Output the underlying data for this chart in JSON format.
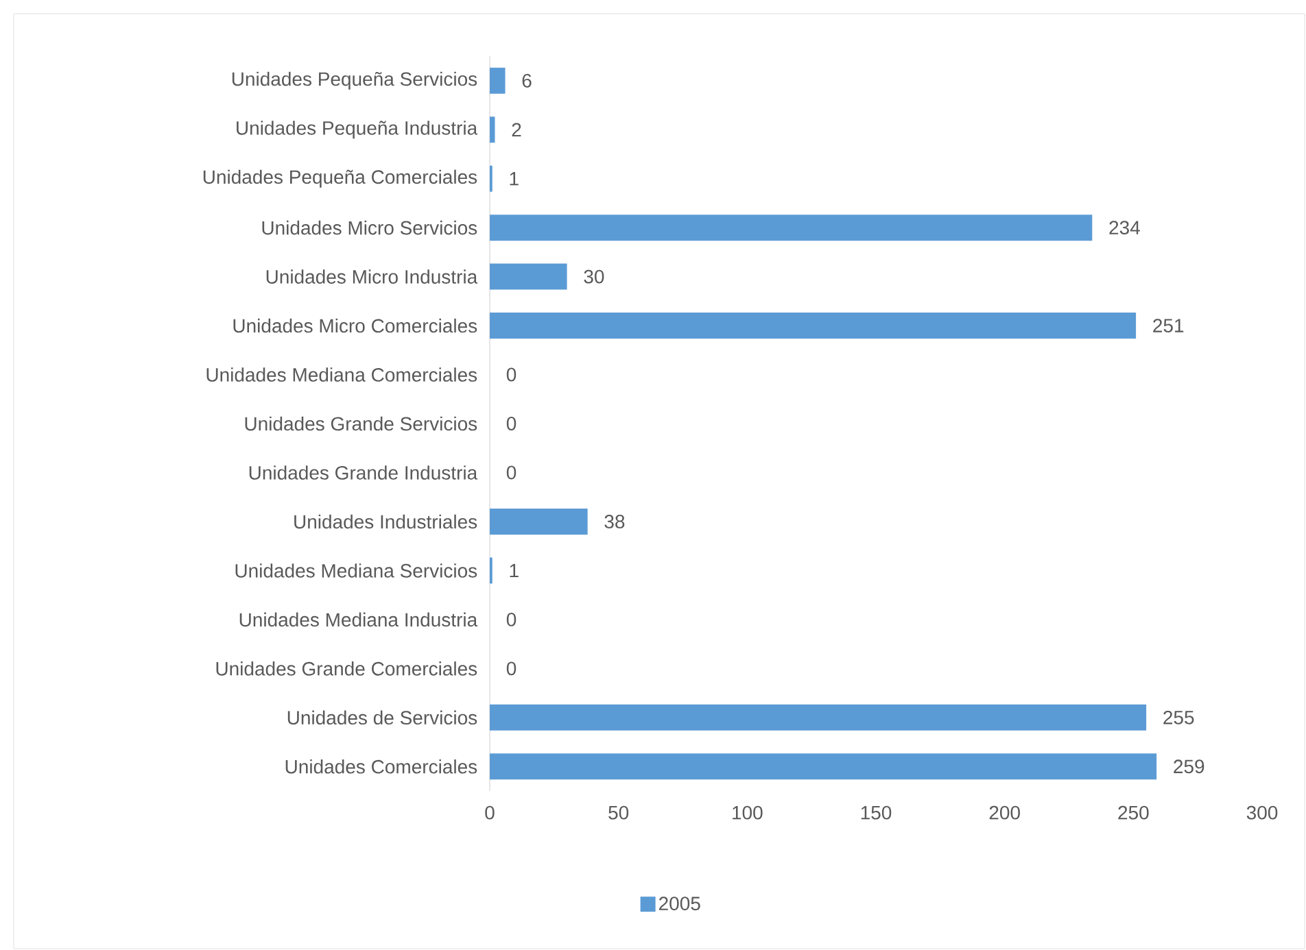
{
  "chart_data": {
    "type": "bar",
    "orientation": "horizontal",
    "categories": [
      "Unidades Pequeña Servicios",
      "Unidades Pequeña Industria",
      "Unidades Pequeña Comerciales",
      "Unidades Micro Servicios",
      "Unidades Micro Industria",
      "Unidades Micro Comerciales",
      "Unidades Mediana Comerciales",
      "Unidades Grande Servicios",
      "Unidades Grande Industria",
      "Unidades Industriales",
      "Unidades Mediana Servicios",
      "Unidades Mediana Industria",
      "Unidades Grande Comerciales",
      "Unidades de Servicios",
      "Unidades Comerciales"
    ],
    "series": [
      {
        "name": "2005",
        "color": "#5b9bd5",
        "values": [
          6,
          2,
          1,
          234,
          30,
          251,
          0,
          0,
          0,
          38,
          1,
          0,
          0,
          255,
          259
        ]
      }
    ],
    "xlim": [
      0,
      300
    ],
    "xticks": [
      0,
      50,
      100,
      150,
      200,
      250,
      300
    ],
    "data_labels": true,
    "grid": false,
    "legend": "bottom"
  }
}
